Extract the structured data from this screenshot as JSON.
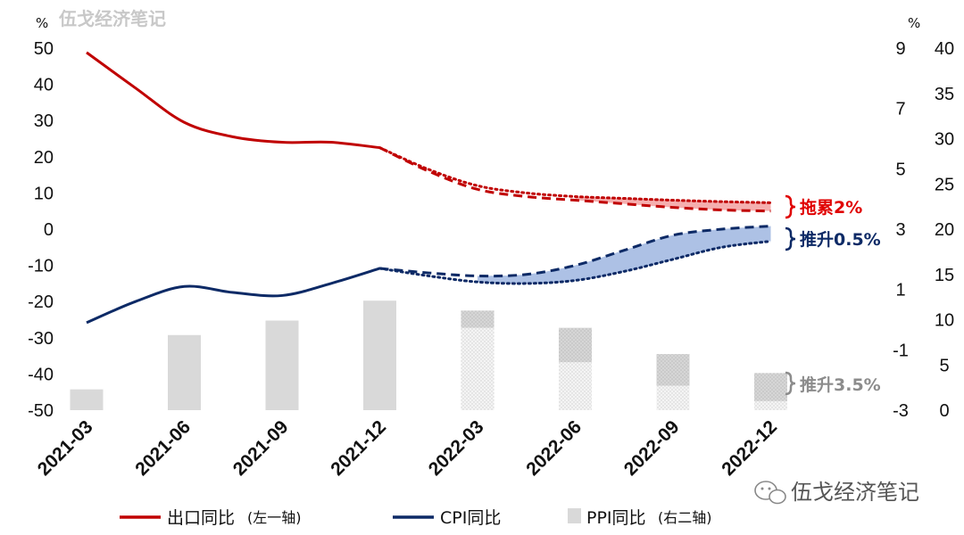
{
  "watermark_top": "伍戈经济笔记",
  "watermark_bottom": "伍戈经济笔记",
  "units": {
    "left": "%",
    "right": "%"
  },
  "annotations": {
    "export_drag": "拖累2%",
    "cpi_lift": "推升0.5%",
    "ppi_lift": "推升3.5%"
  },
  "legend": {
    "export": "出口同比",
    "export_note": "(左一轴)",
    "cpi": "CPI同比",
    "ppi": "PPI同比",
    "ppi_note": "(右二轴)"
  },
  "colors": {
    "export": "#c00000",
    "export_fill": "#f4a6a6",
    "cpi": "#0d2a66",
    "cpi_fill": "#9fb6e0",
    "ppi": "#d9d9d9",
    "ppi_ann": "#8c8c8c"
  },
  "chart_data": {
    "type": "line+bar",
    "categories": [
      "2021-03",
      "2021-06",
      "2021-09",
      "2021-12",
      "2022-03",
      "2022-06",
      "2022-09",
      "2022-12"
    ],
    "left_axis": {
      "label": "出口同比",
      "ylim": [
        -50,
        50
      ],
      "ticks": [
        50,
        40,
        30,
        20,
        10,
        0,
        -10,
        -20,
        -30,
        -40,
        -50
      ]
    },
    "right_axis_1": {
      "label": "CPI同比",
      "ylim": [
        -3,
        9
      ],
      "ticks": [
        9,
        7,
        5,
        3,
        1,
        -1,
        -3
      ]
    },
    "right_axis_2": {
      "label": "PPI同比",
      "ylim": [
        0,
        40
      ],
      "ticks": [
        40,
        35,
        30,
        25,
        20,
        15,
        10,
        5,
        0
      ]
    },
    "series": [
      {
        "name": "出口同比",
        "axis": "left",
        "type": "line",
        "actual": [
          [
            0,
            48.8
          ],
          [
            0.5,
            39
          ],
          [
            1,
            29.5
          ],
          [
            1.5,
            25.5
          ],
          [
            2,
            24
          ],
          [
            2.5,
            24
          ],
          [
            3,
            22.5
          ]
        ],
        "baseline_forecast": [
          [
            3,
            22.5
          ],
          [
            3.5,
            16
          ],
          [
            4,
            11
          ],
          [
            4.5,
            9
          ],
          [
            5,
            8
          ],
          [
            5.5,
            7
          ],
          [
            6,
            6
          ],
          [
            6.5,
            5.3
          ],
          [
            7,
            5
          ]
        ],
        "alt_forecast": [
          [
            3,
            22.5
          ],
          [
            3.5,
            16.5
          ],
          [
            4,
            12
          ],
          [
            4.5,
            10
          ],
          [
            5,
            9
          ],
          [
            5.5,
            8.5
          ],
          [
            6,
            8
          ],
          [
            6.5,
            7.6
          ],
          [
            7,
            7.3
          ]
        ]
      },
      {
        "name": "CPI同比",
        "axis": "right1",
        "type": "line",
        "actual": [
          [
            0,
            -0.1
          ],
          [
            0.5,
            0.6
          ],
          [
            1,
            1.1
          ],
          [
            1.5,
            0.9
          ],
          [
            2,
            0.8
          ],
          [
            2.5,
            1.2
          ],
          [
            3,
            1.7
          ]
        ],
        "baseline_forecast": [
          [
            3,
            1.7
          ],
          [
            3.5,
            1.55
          ],
          [
            4,
            1.45
          ],
          [
            4.5,
            1.5
          ],
          [
            5,
            1.8
          ],
          [
            5.5,
            2.3
          ],
          [
            6,
            2.8
          ],
          [
            6.5,
            3.0
          ],
          [
            7,
            3.1
          ]
        ],
        "alt_forecast": [
          [
            3,
            1.7
          ],
          [
            3.5,
            1.45
          ],
          [
            4,
            1.25
          ],
          [
            4.5,
            1.2
          ],
          [
            5,
            1.3
          ],
          [
            5.5,
            1.6
          ],
          [
            6,
            2.0
          ],
          [
            6.5,
            2.4
          ],
          [
            7,
            2.6
          ]
        ]
      },
      {
        "name": "PPI同比",
        "axis": "right2",
        "type": "bar",
        "values": [
          2.3,
          8.3,
          9.9,
          12.1,
          11.0,
          9.1,
          6.2,
          4.1
        ],
        "lower_segment": [
          null,
          null,
          null,
          null,
          9.1,
          5.3,
          2.7,
          1.0
        ]
      }
    ]
  }
}
